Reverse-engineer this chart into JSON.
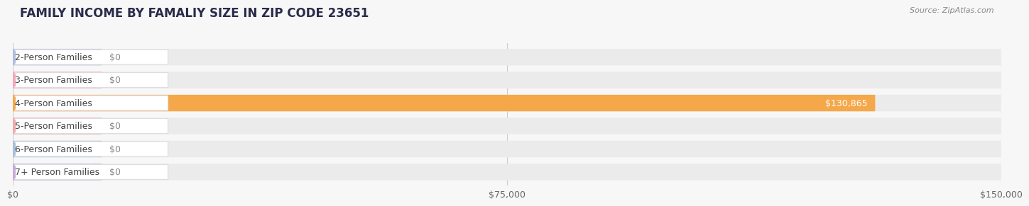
{
  "title": "FAMILY INCOME BY FAMALIY SIZE IN ZIP CODE 23651",
  "source": "Source: ZipAtlas.com",
  "categories": [
    "2-Person Families",
    "3-Person Families",
    "4-Person Families",
    "5-Person Families",
    "6-Person Families",
    "7+ Person Families"
  ],
  "values": [
    0,
    0,
    130865,
    0,
    0,
    0
  ],
  "bar_colors": [
    "#b0bedd",
    "#f2a8bc",
    "#f5a84a",
    "#f0aaaa",
    "#aabedd",
    "#c8aad8"
  ],
  "label_colors": [
    "#b0bedd",
    "#f2a8bc",
    "#f5a84a",
    "#f0aaaa",
    "#aabedd",
    "#c8aad8"
  ],
  "xlim": [
    0,
    150000
  ],
  "xticks": [
    0,
    75000,
    150000
  ],
  "xtick_labels": [
    "$0",
    "$75,000",
    "$150,000"
  ],
  "background_color": "#f7f7f7",
  "bar_bg_color": "#ebebeb",
  "title_color": "#2a2a4a",
  "source_color": "#888888",
  "value_label_inside_color": "#ffffff",
  "value_label_outside_color": "#888888",
  "title_fontsize": 12,
  "label_fontsize": 9,
  "value_fontsize": 9,
  "tick_fontsize": 9
}
